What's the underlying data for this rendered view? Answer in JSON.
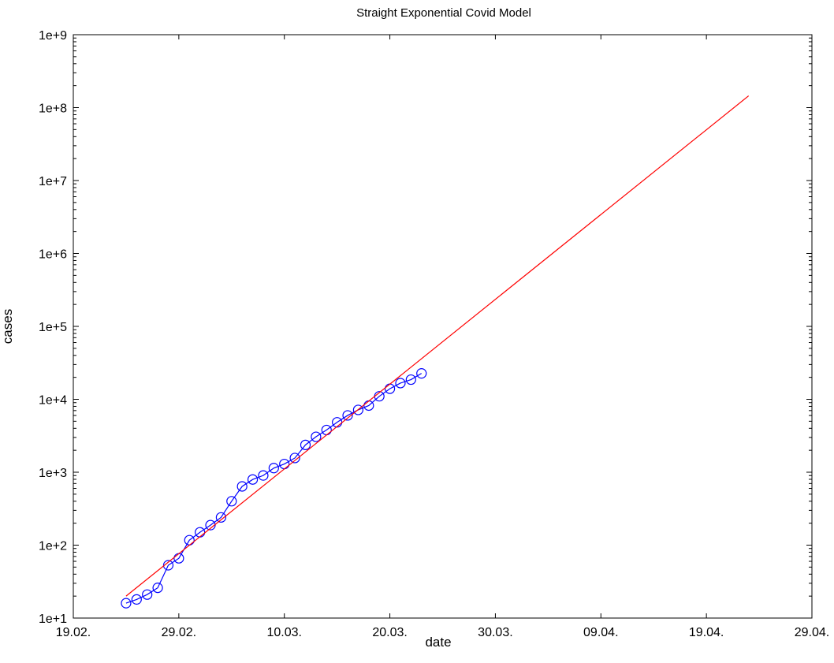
{
  "chart_data": {
    "type": "line",
    "title": "Straight Exponential Covid Model",
    "xlabel": "date",
    "ylabel": "cases",
    "x_tick_labels": [
      "19.02.",
      "29.02.",
      "10.03.",
      "20.03.",
      "30.03.",
      "09.04.",
      "19.04.",
      "29.04."
    ],
    "y_tick_labels": [
      "1e+1",
      "1e+2",
      "1e+3",
      "1e+4",
      "1e+5",
      "1e+6",
      "1e+7",
      "1e+8",
      "1e+9"
    ],
    "xlim": [
      "2020-02-19",
      "2020-04-29"
    ],
    "ylim": [
      10,
      1000000000
    ],
    "y_scale": "log",
    "grid": false,
    "series": [
      {
        "color": "#0000ff",
        "marker": "circle",
        "style": "line+markers",
        "x": [
          "2020-02-24",
          "2020-02-25",
          "2020-02-26",
          "2020-02-27",
          "2020-02-28",
          "2020-02-29",
          "2020-03-01",
          "2020-03-02",
          "2020-03-03",
          "2020-03-04",
          "2020-03-05",
          "2020-03-06",
          "2020-03-07",
          "2020-03-08",
          "2020-03-09",
          "2020-03-10",
          "2020-03-11",
          "2020-03-12",
          "2020-03-13",
          "2020-03-14",
          "2020-03-15",
          "2020-03-16",
          "2020-03-17",
          "2020-03-18",
          "2020-03-19",
          "2020-03-20",
          "2020-03-21",
          "2020-03-22",
          "2020-03-23"
        ],
        "values": [
          16,
          18,
          21,
          26,
          53,
          66,
          117,
          150,
          188,
          240,
          400,
          639,
          795,
          902,
          1139,
          1296,
          1567,
          2369,
          3062,
          3795,
          4838,
          6012,
          7156,
          8198,
          10999,
          13957,
          16662,
          18610,
          22672
        ]
      },
      {
        "color": "#ff0000",
        "style": "line",
        "x": [
          "2020-02-24",
          "2020-04-23"
        ],
        "values": [
          20,
          145000000
        ]
      }
    ]
  }
}
